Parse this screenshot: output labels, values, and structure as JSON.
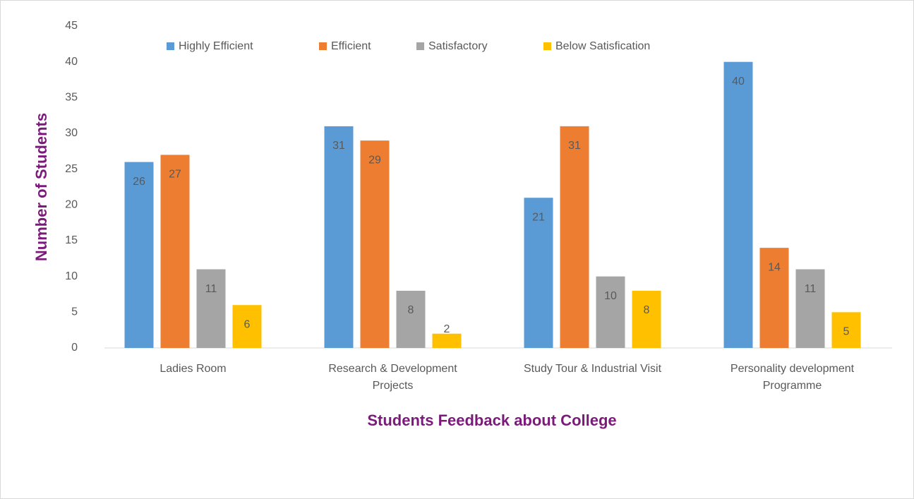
{
  "chart_data": {
    "type": "bar",
    "x_label": "Students Feedback about College",
    "y_label": "Number of Students",
    "categories": [
      "Ladies Room",
      "Research & Development Projects",
      "Study Tour & Industrial Visit",
      "Personality development Programme"
    ],
    "series": [
      {
        "name": "Highly Efficient",
        "color": "#5b9bd5",
        "values": [
          26,
          31,
          21,
          40
        ]
      },
      {
        "name": "Efficient",
        "color": "#ed7d31",
        "values": [
          27,
          29,
          31,
          14
        ]
      },
      {
        "name": "Satisfactory",
        "color": "#a5a5a5",
        "values": [
          11,
          8,
          10,
          11
        ]
      },
      {
        "name": "Below Satisfication",
        "color": "#ffc000",
        "values": [
          6,
          2,
          8,
          5
        ]
      }
    ],
    "ylim": [
      0,
      45
    ],
    "yticks": [
      0,
      5,
      10,
      15,
      20,
      25,
      30,
      35,
      40,
      45
    ],
    "grid": false,
    "legend": "top"
  }
}
